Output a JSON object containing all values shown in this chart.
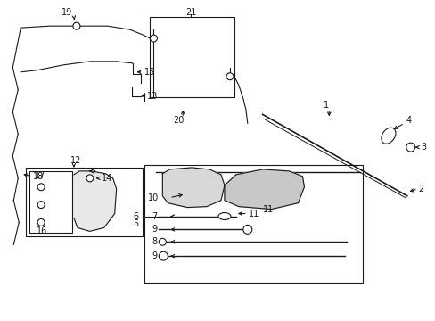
{
  "bg_color": "#ffffff",
  "line_color": "#1a1a1a",
  "fig_width": 4.89,
  "fig_height": 3.6,
  "dpi": 100,
  "fs": 7.0,
  "lw": 0.8
}
